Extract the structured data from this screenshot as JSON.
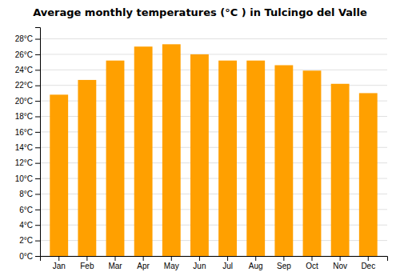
{
  "chart_data": {
    "type": "bar",
    "title": "Average monthly temperatures (°C ) in Tulcingo del Valle",
    "categories": [
      "Jan",
      "Feb",
      "Mar",
      "Apr",
      "May",
      "Jun",
      "Jul",
      "Aug",
      "Sep",
      "Oct",
      "Nov",
      "Dec"
    ],
    "values": [
      20.8,
      22.7,
      25.2,
      27.0,
      27.3,
      26.0,
      25.2,
      25.2,
      24.6,
      23.9,
      22.2,
      21.0
    ],
    "color": "#FFA000",
    "ylim": [
      0,
      29.5
    ],
    "yticks": [
      {
        "value": 0,
        "label": "0°C"
      },
      {
        "value": 2,
        "label": "2°C"
      },
      {
        "value": 4,
        "label": "4°C"
      },
      {
        "value": 6,
        "label": "6°C"
      },
      {
        "value": 8,
        "label": "8°C"
      },
      {
        "value": 10,
        "label": "10°C"
      },
      {
        "value": 12,
        "label": "12°C"
      },
      {
        "value": 14,
        "label": "14°C"
      },
      {
        "value": 16,
        "label": "16°C"
      },
      {
        "value": 18,
        "label": "18°C"
      },
      {
        "value": 20,
        "label": "20°C"
      },
      {
        "value": 22,
        "label": "22°C"
      },
      {
        "value": 24,
        "label": "24°C"
      },
      {
        "value": 26,
        "label": "26°C"
      },
      {
        "value": 28,
        "label": "28°C"
      }
    ],
    "grid": true
  }
}
